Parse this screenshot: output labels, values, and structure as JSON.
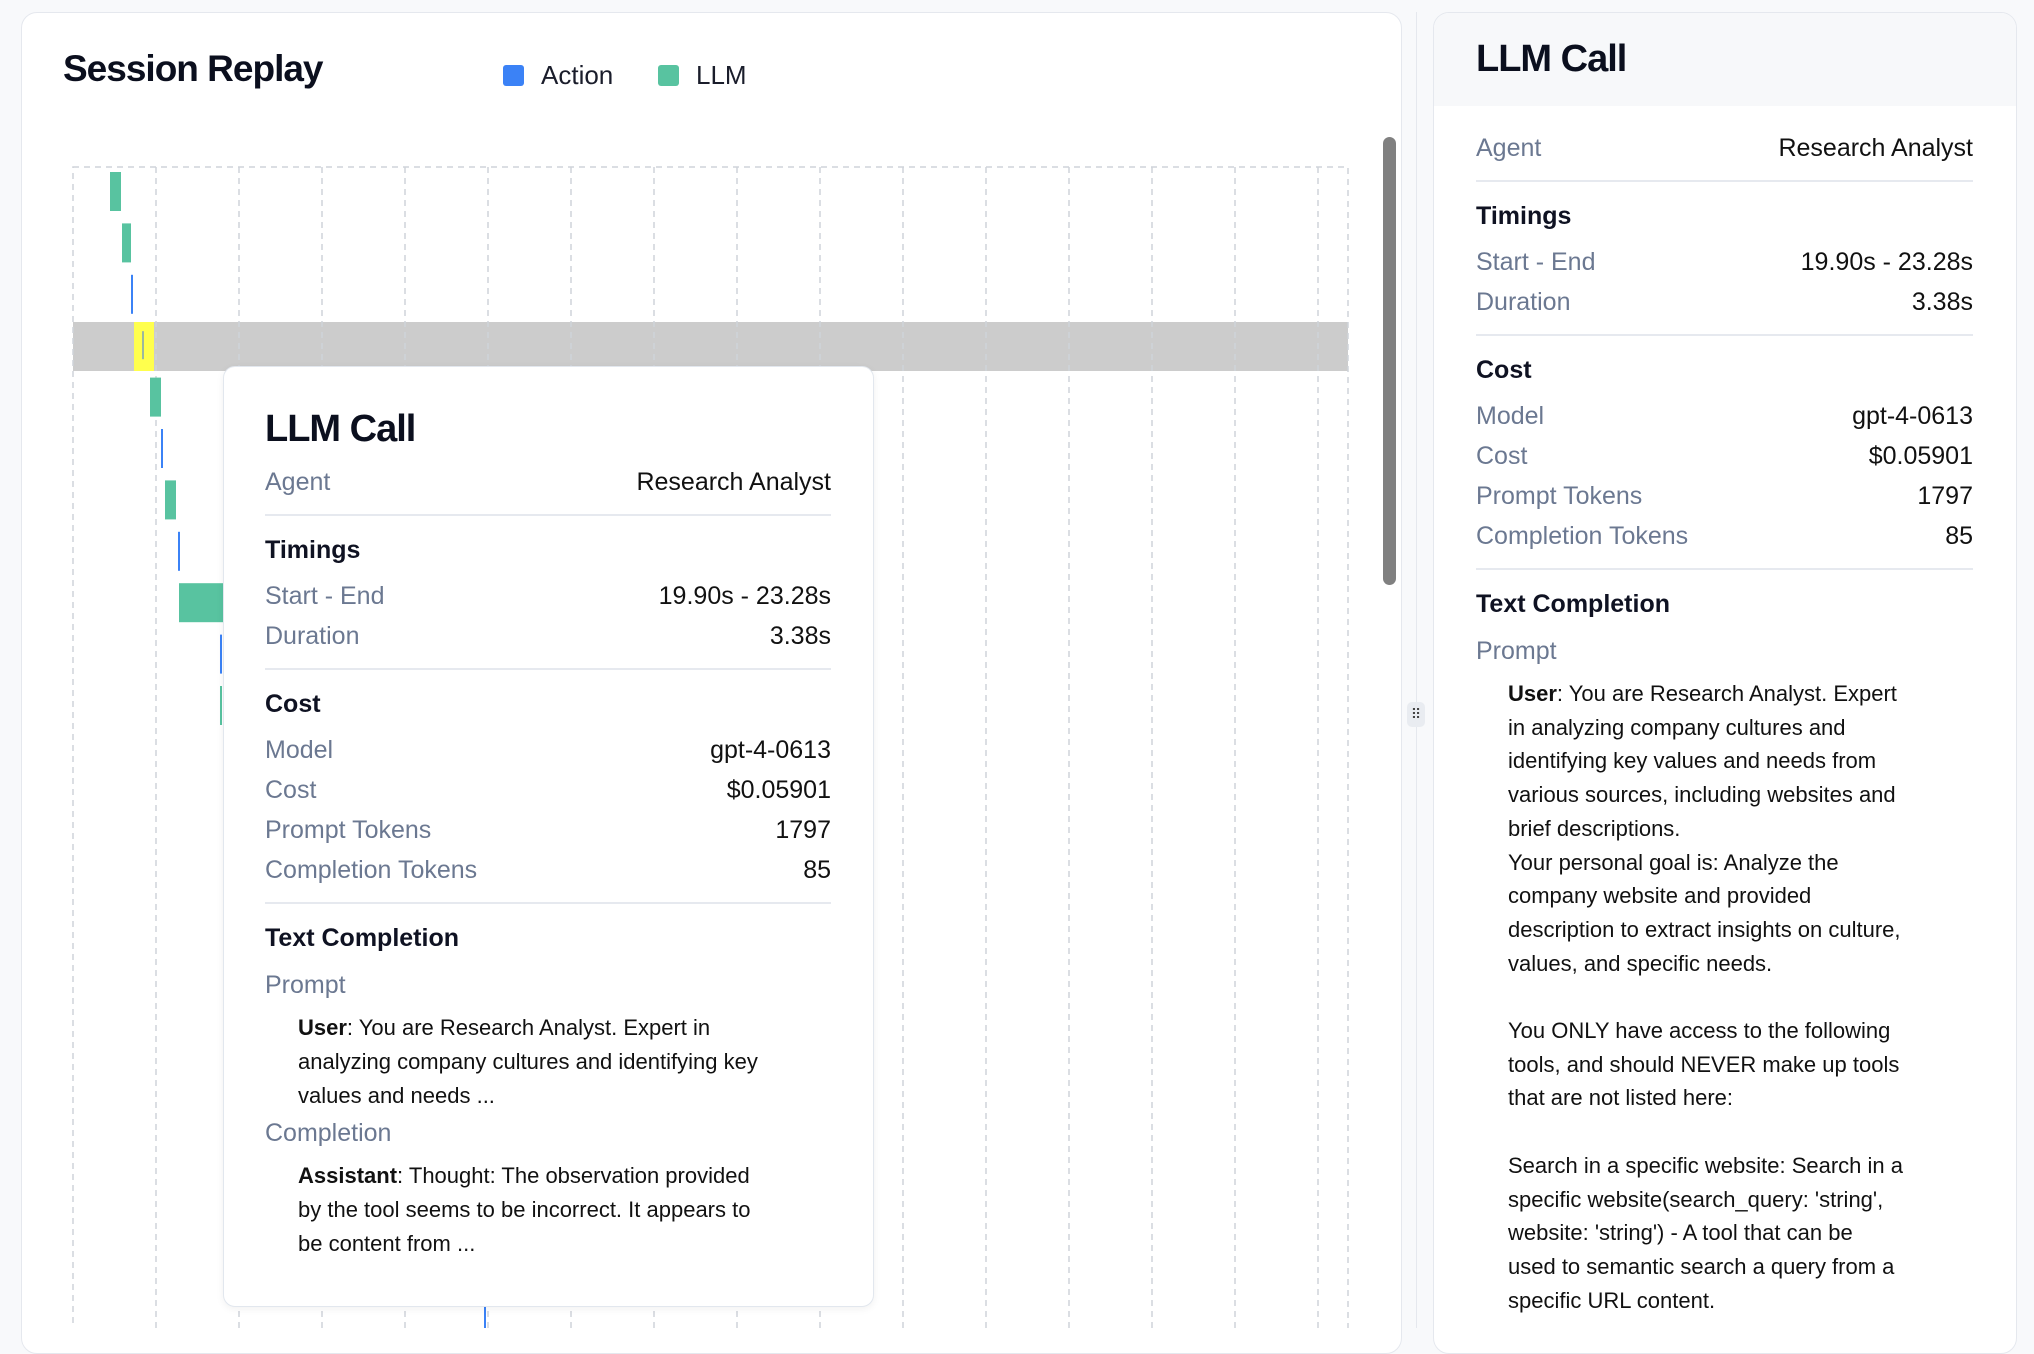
{
  "replay": {
    "title": "Session Replay",
    "legend": [
      {
        "label": "Action",
        "color": "#3b82f6"
      },
      {
        "label": "LLM",
        "color": "#58c3a0"
      }
    ],
    "highlight_color": "#ffff4d",
    "selected_row_color": "#cccccc",
    "events": [
      "llm",
      "llm",
      "action",
      "llm",
      "llm",
      "action",
      "llm",
      "action",
      "llm",
      "action",
      "llm",
      "action"
    ],
    "selected_event_index": 3
  },
  "tooltip": {
    "title": "LLM Call",
    "agent_label": "Agent",
    "agent": "Research Analyst",
    "timings_head": "Timings",
    "start_end_label": "Start - End",
    "start_end": "19.90s - 23.28s",
    "duration_label": "Duration",
    "duration": "3.38s",
    "cost_head": "Cost",
    "model_label": "Model",
    "model": "gpt-4-0613",
    "cost_label": "Cost",
    "cost": "$0.05901",
    "prompt_tokens_label": "Prompt Tokens",
    "prompt_tokens": "1797",
    "completion_tokens_label": "Completion Tokens",
    "completion_tokens": "85",
    "text_head": "Text Completion",
    "prompt_label": "Prompt",
    "prompt_role": "User",
    "prompt_lines": [
      ": You are Research Analyst. Expert in",
      "analyzing company cultures and identifying key",
      "values and needs ..."
    ],
    "completion_label": "Completion",
    "completion_role": "Assistant",
    "completion_lines": [
      ": Thought: The observation provided",
      "by the tool seems to be incorrect. It appears to",
      "be content from ..."
    ]
  },
  "details": {
    "title": "LLM Call",
    "agent_label": "Agent",
    "agent": "Research Analyst",
    "timings_head": "Timings",
    "start_end_label": "Start - End",
    "start_end": "19.90s - 23.28s",
    "duration_label": "Duration",
    "duration": "3.38s",
    "cost_head": "Cost",
    "model_label": "Model",
    "model": "gpt-4-0613",
    "cost_label": "Cost",
    "cost": "$0.05901",
    "prompt_tokens_label": "Prompt Tokens",
    "prompt_tokens": "1797",
    "completion_tokens_label": "Completion Tokens",
    "completion_tokens": "85",
    "text_head": "Text Completion",
    "prompt_label": "Prompt",
    "prompt_role": "User",
    "prompt_lines": [
      ": You are Research Analyst. Expert",
      "in analyzing company cultures and",
      "identifying key values and needs from",
      "various sources, including websites and",
      "brief descriptions.",
      "Your personal goal is: Analyze the",
      "company website and provided",
      "description to extract insights on culture,",
      "values, and specific needs.",
      "",
      "You ONLY have access to the following",
      "tools, and should NEVER make up tools",
      "that are not listed here:",
      "",
      "Search in a specific website: Search in a",
      "specific website(search_query: 'string',",
      "website: 'string') - A tool that can be",
      "used to semantic search a query from a",
      "specific URL content."
    ]
  }
}
